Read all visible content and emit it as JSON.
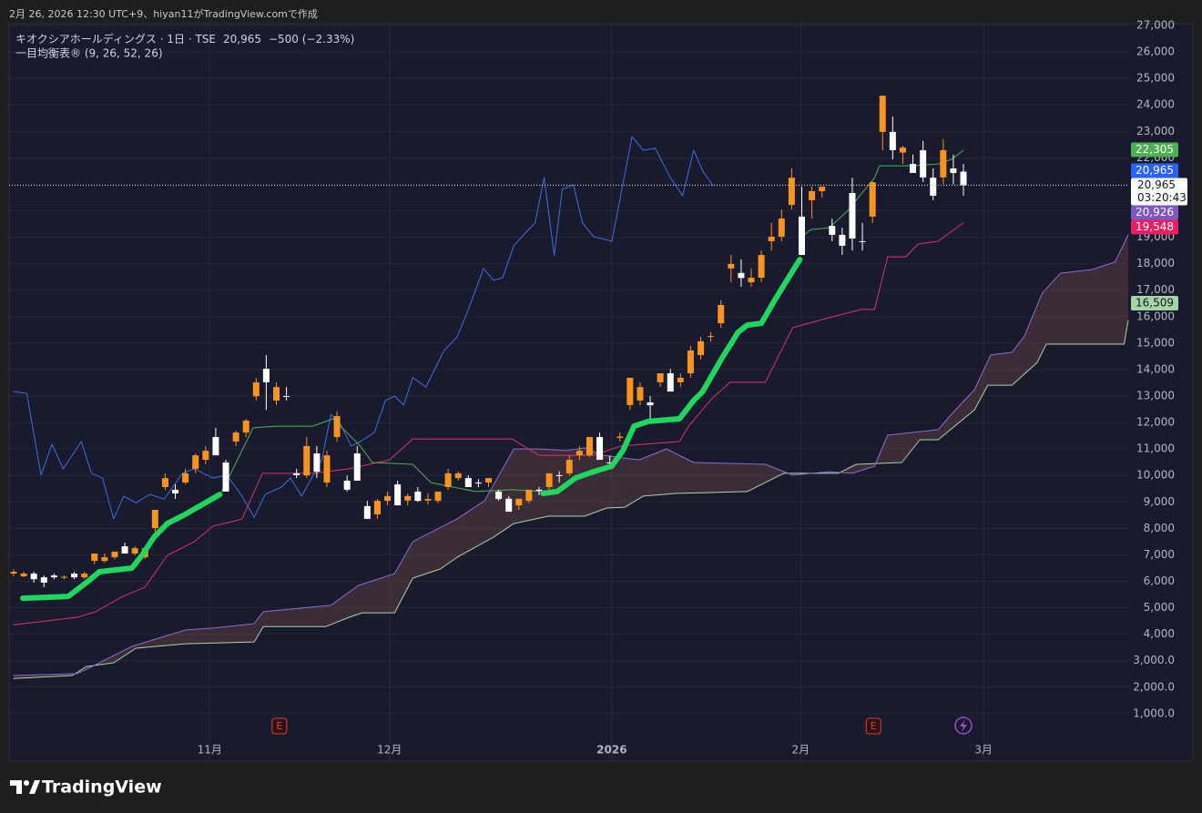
{
  "header": {
    "caption": "2月 26, 2026 12:30 UTC+9、hiyan11がTradingView.comで作成"
  },
  "chart_data": {
    "type": "candlestick",
    "legend": {
      "symbol": "キオクシアホールディングス · 1日 · TSE",
      "price": "20,965",
      "change": "−500 (−2.33%)",
      "indicator": "一目均衡表® (9, 26, 52, 26)"
    },
    "up_color": "#f7931e",
    "down_color": "#ffffff",
    "candles": [
      [
        6290,
        6460,
        6190,
        6360
      ],
      [
        6190,
        6360,
        6150,
        6290
      ],
      [
        6290,
        6360,
        5950,
        6080
      ],
      [
        6150,
        6220,
        5780,
        5950
      ],
      [
        6220,
        6290,
        6080,
        6150
      ],
      [
        6150,
        6220,
        6080,
        6170
      ],
      [
        6290,
        6360,
        6080,
        6150
      ],
      [
        6150,
        6360,
        6080,
        6290
      ],
      [
        6770,
        7050,
        6630,
        7050
      ],
      [
        6770,
        7050,
        6700,
        6910
      ],
      [
        6910,
        7120,
        6840,
        7120
      ],
      [
        7320,
        7460,
        7050,
        7050
      ],
      [
        7050,
        7320,
        6980,
        7250
      ],
      [
        6910,
        7320,
        6840,
        7250
      ],
      [
        8010,
        8700,
        7870,
        8700
      ],
      [
        9560,
        10080,
        9450,
        9900
      ],
      [
        9460,
        9660,
        9110,
        9320
      ],
      [
        9730,
        10250,
        9660,
        10080
      ],
      [
        10250,
        10830,
        10080,
        10760
      ],
      [
        10590,
        11110,
        10420,
        10930
      ],
      [
        11450,
        11800,
        10760,
        10760
      ],
      [
        10490,
        10590,
        9390,
        9390
      ],
      [
        11280,
        11700,
        11110,
        11620
      ],
      [
        11620,
        12140,
        11450,
        12070
      ],
      [
        12990,
        13690,
        12830,
        13520
      ],
      [
        14030,
        14550,
        12480,
        13520
      ],
      [
        12830,
        13520,
        12660,
        13340
      ],
      [
        13000,
        13340,
        12830,
        12970
      ],
      [
        10080,
        10250,
        9900,
        10010
      ],
      [
        10000,
        11450,
        9900,
        11110
      ],
      [
        10830,
        11110,
        9900,
        10140
      ],
      [
        9730,
        10940,
        9560,
        10760
      ],
      [
        11450,
        12410,
        11280,
        12240
      ],
      [
        9800,
        10000,
        9390,
        9460
      ],
      [
        10830,
        11110,
        9800,
        9800
      ],
      [
        8840,
        9040,
        8360,
        8360
      ],
      [
        8530,
        9110,
        8360,
        9040
      ],
      [
        9040,
        9390,
        8870,
        9220
      ],
      [
        9660,
        9800,
        8870,
        8870
      ],
      [
        9050,
        9320,
        8870,
        9220
      ],
      [
        9390,
        9560,
        9000,
        9040
      ],
      [
        9050,
        9320,
        8900,
        9110
      ],
      [
        9040,
        9390,
        8950,
        9390
      ],
      [
        9560,
        10250,
        9460,
        10080
      ],
      [
        9900,
        10150,
        9800,
        10080
      ],
      [
        9900,
        10010,
        9560,
        9560
      ],
      [
        9730,
        9860,
        9560,
        9700
      ],
      [
        9730,
        9900,
        9560,
        9900
      ],
      [
        9390,
        9460,
        9040,
        9110
      ],
      [
        9120,
        9220,
        8630,
        8630
      ],
      [
        8870,
        9120,
        8700,
        9120
      ],
      [
        9040,
        9460,
        8950,
        9460
      ],
      [
        9460,
        9560,
        9250,
        9420
      ],
      [
        9560,
        10080,
        9460,
        10080
      ],
      [
        10010,
        10150,
        9730,
        10010
      ],
      [
        10080,
        10760,
        10000,
        10590
      ],
      [
        10760,
        11100,
        10590,
        10930
      ],
      [
        10760,
        11450,
        10700,
        11450
      ],
      [
        11450,
        11620,
        10600,
        10590
      ],
      [
        10490,
        10760,
        10250,
        10490
      ],
      [
        11420,
        11620,
        11280,
        11470
      ],
      [
        12660,
        13690,
        12480,
        13690
      ],
      [
        12830,
        13520,
        12660,
        13340
      ],
      [
        12760,
        13000,
        12140,
        12650
      ],
      [
        13520,
        13860,
        13340,
        13860
      ],
      [
        13860,
        14030,
        13170,
        13170
      ],
      [
        13520,
        13860,
        13340,
        13690
      ],
      [
        13860,
        14900,
        13690,
        14720
      ],
      [
        14550,
        15240,
        14380,
        15070
      ],
      [
        15240,
        15410,
        15060,
        15270
      ],
      [
        15750,
        16610,
        15580,
        16440
      ],
      [
        17820,
        18330,
        17300,
        17990
      ],
      [
        17650,
        18160,
        17130,
        17460
      ],
      [
        17300,
        17820,
        17130,
        17470
      ],
      [
        17470,
        18500,
        17300,
        18330
      ],
      [
        18850,
        19550,
        18500,
        19020
      ],
      [
        19020,
        20050,
        18850,
        19710
      ],
      [
        20220,
        21600,
        20050,
        21250
      ],
      [
        19780,
        20910,
        18330,
        18330
      ],
      [
        20400,
        20910,
        19700,
        20740
      ],
      [
        20740,
        20910,
        20500,
        20910
      ],
      [
        19430,
        19700,
        18850,
        19090
      ],
      [
        19090,
        19360,
        18330,
        18680
      ],
      [
        20670,
        21250,
        18500,
        18950
      ],
      [
        18850,
        19540,
        18500,
        18830
      ],
      [
        19780,
        21100,
        19540,
        21080
      ],
      [
        22980,
        24350,
        22290,
        24350
      ],
      [
        22980,
        23560,
        21940,
        22290
      ],
      [
        22200,
        22460,
        21770,
        22390
      ],
      [
        21770,
        22120,
        21430,
        21430
      ],
      [
        22290,
        22640,
        21090,
        21260
      ],
      [
        21250,
        21600,
        20400,
        20570
      ],
      [
        21260,
        22710,
        21000,
        22290
      ],
      [
        21600,
        22120,
        21000,
        21430
      ],
      [
        21480,
        21770,
        20570,
        20965
      ]
    ],
    "lines": [
      {
        "color": "#a5d6a7",
        "width": 1,
        "x": [
          0,
          5.8,
          7.2,
          9.9,
          12.1,
          17.0,
          23.8,
          24.7,
          30.9,
          33.2,
          34.5,
          37.7,
          39.5,
          42.2,
          43.9,
          47.5,
          49.5,
          52.9,
          56.5,
          58.7,
          60.5,
          62.3,
          65.5,
          72.6,
          76.2,
          81.6,
          83.4,
          87.9,
          89.7,
          91.5,
          95.1,
          96.4,
          98.8,
          101.3,
          102.2,
          109.9,
          110.3
        ],
        "values": [
          2330,
          2440,
          2780,
          2920,
          3470,
          3640,
          3710,
          4290,
          4290,
          4640,
          4810,
          4810,
          6120,
          6460,
          6910,
          7670,
          8180,
          8460,
          8460,
          8770,
          8800,
          9220,
          9320,
          9390,
          10080,
          10080,
          10420,
          10490,
          11350,
          11350,
          12480,
          13410,
          13410,
          14270,
          14960,
          14960,
          15850
        ]
      },
      {
        "color": "#8c6bd1",
        "width": 1,
        "x": [
          0,
          6.3,
          7.6,
          11.7,
          17.0,
          19.7,
          23.8,
          24.7,
          31.4,
          34.1,
          37.7,
          39.5,
          43.9,
          46.6,
          49.5,
          52.0,
          54.7,
          56.5,
          58.3,
          61.9,
          64.6,
          67.3,
          74.4,
          77.1,
          80.7,
          83.0,
          85.2,
          86.5,
          91.5,
          92.8,
          95.1,
          96.7,
          98.8,
          100.0,
          101.8,
          103.6,
          106.7,
          109.0,
          110.3
        ],
        "values": [
          2440,
          2510,
          2750,
          3540,
          4160,
          4230,
          4400,
          4850,
          5090,
          5840,
          6290,
          7500,
          8360,
          9040,
          11000,
          11000,
          10940,
          11040,
          10760,
          10590,
          11000,
          10490,
          10420,
          10010,
          10140,
          10080,
          10350,
          11520,
          11730,
          12310,
          13240,
          14550,
          14650,
          15240,
          16890,
          17640,
          17780,
          18060,
          19090
        ]
      },
      {
        "color": "#3b6fe0",
        "width": 1,
        "x": [
          0,
          1.3,
          2.7,
          3.8,
          4.9,
          6.7,
          7.7,
          8.8,
          9.9,
          10.9,
          12.1,
          13.5,
          14.9,
          16.7,
          17.9,
          19.7,
          21.1,
          22.6,
          23.8,
          24.9,
          26.5,
          27.4,
          28.5,
          30.5,
          31.4,
          32.3,
          33.4,
          34.3,
          35.7,
          36.8,
          37.7,
          38.6,
          39.5,
          40.8,
          42.6,
          43.9,
          45.0,
          46.5,
          47.5,
          48.4,
          49.5,
          50.7,
          51.6,
          52.5,
          53.5,
          54.3,
          55.4,
          56.3,
          57.4,
          59.2,
          61.2,
          62.3,
          63.5,
          65.0,
          66.2,
          67.3,
          68.2,
          69.2
        ],
        "values": [
          13170,
          13100,
          10010,
          11180,
          10250,
          11280,
          10080,
          9900,
          8360,
          9220,
          8970,
          9280,
          9110,
          10080,
          10250,
          9900,
          10010,
          9220,
          8420,
          9280,
          9560,
          9900,
          9220,
          10590,
          12310,
          11970,
          11110,
          11280,
          11620,
          12830,
          13000,
          12660,
          13690,
          13340,
          14720,
          15240,
          16270,
          17820,
          17370,
          17470,
          18680,
          19190,
          19540,
          21250,
          18330,
          20810,
          20980,
          19540,
          19020,
          18850,
          22800,
          22290,
          22360,
          21250,
          20570,
          22290,
          21500,
          20965
        ]
      },
      {
        "color": "#d6336c",
        "width": 1,
        "x": [
          0,
          6.3,
          8.1,
          10.8,
          13.0,
          15.2,
          17.9,
          19.7,
          22.6,
          24.6,
          29.6,
          33.2,
          37.2,
          39.5,
          49.3,
          52.0,
          57.4,
          60.1,
          65.9,
          66.8,
          69.1,
          70.9,
          74.4,
          77.1,
          80.3,
          83.9,
          85.2,
          86.5,
          88.3,
          89.5,
          91.5,
          94.0
        ],
        "values": [
          4360,
          4640,
          4850,
          5430,
          5780,
          6980,
          7500,
          8080,
          8350,
          10080,
          10080,
          10250,
          10590,
          11380,
          11380,
          10760,
          10760,
          11110,
          11280,
          11860,
          12900,
          13520,
          13520,
          15580,
          15920,
          16270,
          16270,
          18260,
          18260,
          18740,
          18850,
          19550
        ]
      },
      {
        "color": "#4caf50",
        "width": 1,
        "x": [
          20.6,
          23.7,
          26.0,
          29.6,
          31.6,
          34.3,
          35.5,
          39.5,
          41.3,
          45.7,
          49.3,
          52.4,
          null,
          78.0,
          78.9,
          80.7,
          82.5,
          85.2,
          85.7,
          88.8,
          91.5,
          92.8,
          94.0
        ],
        "values": [
          9390,
          11800,
          11860,
          11860,
          12140,
          11110,
          10490,
          10420,
          9730,
          9390,
          9460,
          9390,
          null,
          19020,
          19290,
          19360,
          19980,
          21250,
          21700,
          21700,
          21770,
          21940,
          22290
        ]
      },
      {
        "color": "#1fd65f",
        "width": 6,
        "x": [
          0.9,
          5.4,
          7.2,
          8.5,
          11.7,
          12.7,
          13.9,
          15.2,
          17.0,
          20.4,
          null,
          52.4,
          53.8,
          55.6,
          57.4,
          59.2,
          60.3,
          61.4,
          62.8,
          65.9,
          67.3,
          68.2,
          70.0,
          71.7,
          72.6,
          74.0,
          75.3,
          77.8
        ],
        "values": [
          5360,
          5430,
          5950,
          6360,
          6500,
          6980,
          7670,
          8180,
          8530,
          9280,
          null,
          9320,
          9390,
          9900,
          10140,
          10350,
          10940,
          11860,
          12040,
          12140,
          12830,
          13170,
          14370,
          15410,
          15680,
          15750,
          16610,
          18160
        ]
      }
    ],
    "cloud": {
      "color": "rgba(150,95,80,0.28)",
      "between": [
        1,
        0
      ]
    },
    "xlim": [
      -0.45,
      110.4
    ],
    "ylim": [
      -760,
      27070
    ],
    "xticks": [
      {
        "value": 19.4,
        "label": "11月"
      },
      {
        "value": 37.2,
        "label": "12月"
      },
      {
        "value": 59.2,
        "label": "2026"
      },
      {
        "value": 77.9,
        "label": "2月"
      },
      {
        "value": 96.0,
        "label": "3月"
      }
    ],
    "yticks": [
      {
        "value": 1000,
        "label": "1,000.0"
      },
      {
        "value": 2000,
        "label": "2,000.0"
      },
      {
        "value": 3000,
        "label": "3,000.0"
      },
      {
        "value": 4000,
        "label": "4,000"
      },
      {
        "value": 5000,
        "label": "5,000"
      },
      {
        "value": 6000,
        "label": "6,000"
      },
      {
        "value": 7000,
        "label": "7,000"
      },
      {
        "value": 8000,
        "label": "8,000"
      },
      {
        "value": 9000,
        "label": "9,000"
      },
      {
        "value": 10000,
        "label": "10,000"
      },
      {
        "value": 11000,
        "label": "11,000"
      },
      {
        "value": 12000,
        "label": "12,000"
      },
      {
        "value": 13000,
        "label": "13,000"
      },
      {
        "value": 14000,
        "label": "14,000"
      },
      {
        "value": 15000,
        "label": "15,000"
      },
      {
        "value": 16000,
        "label": "16,000"
      },
      {
        "value": 17000,
        "label": "17,000"
      },
      {
        "value": 18000,
        "label": "18,000"
      },
      {
        "value": 19000,
        "label": "19,000"
      },
      {
        "value": 20000,
        "label": "20,000"
      },
      {
        "value": 21000,
        "label": "21,000"
      },
      {
        "value": 22000,
        "label": "22,000"
      },
      {
        "value": 23000,
        "label": "23,000"
      },
      {
        "value": 24000,
        "label": "24,000"
      },
      {
        "value": 25000,
        "label": "25,000"
      },
      {
        "value": 26000,
        "label": "26,000"
      },
      {
        "value": 27000,
        "label": "27,000"
      }
    ],
    "grid": true,
    "last_price": {
      "value": 20965,
      "label": "20,965",
      "countdown": "03:20:43"
    },
    "price_labels": [
      {
        "value": 22305,
        "label": "22,305",
        "color": "#4caf50"
      },
      {
        "value": 20965,
        "label": "20,965",
        "color": "#2962ff"
      },
      {
        "value": 20926,
        "label": "20,926",
        "color": "#7e57c2"
      },
      {
        "value": 19548,
        "label": "19,548",
        "color": "#e91e63"
      },
      {
        "value": 16509,
        "label": "16,509",
        "color": "#a5d6a7"
      }
    ],
    "events": [
      {
        "x": 26.3,
        "label": "E"
      },
      {
        "x": 85.1,
        "label": "E"
      }
    ]
  },
  "footer": {
    "logo": "TradingView"
  }
}
